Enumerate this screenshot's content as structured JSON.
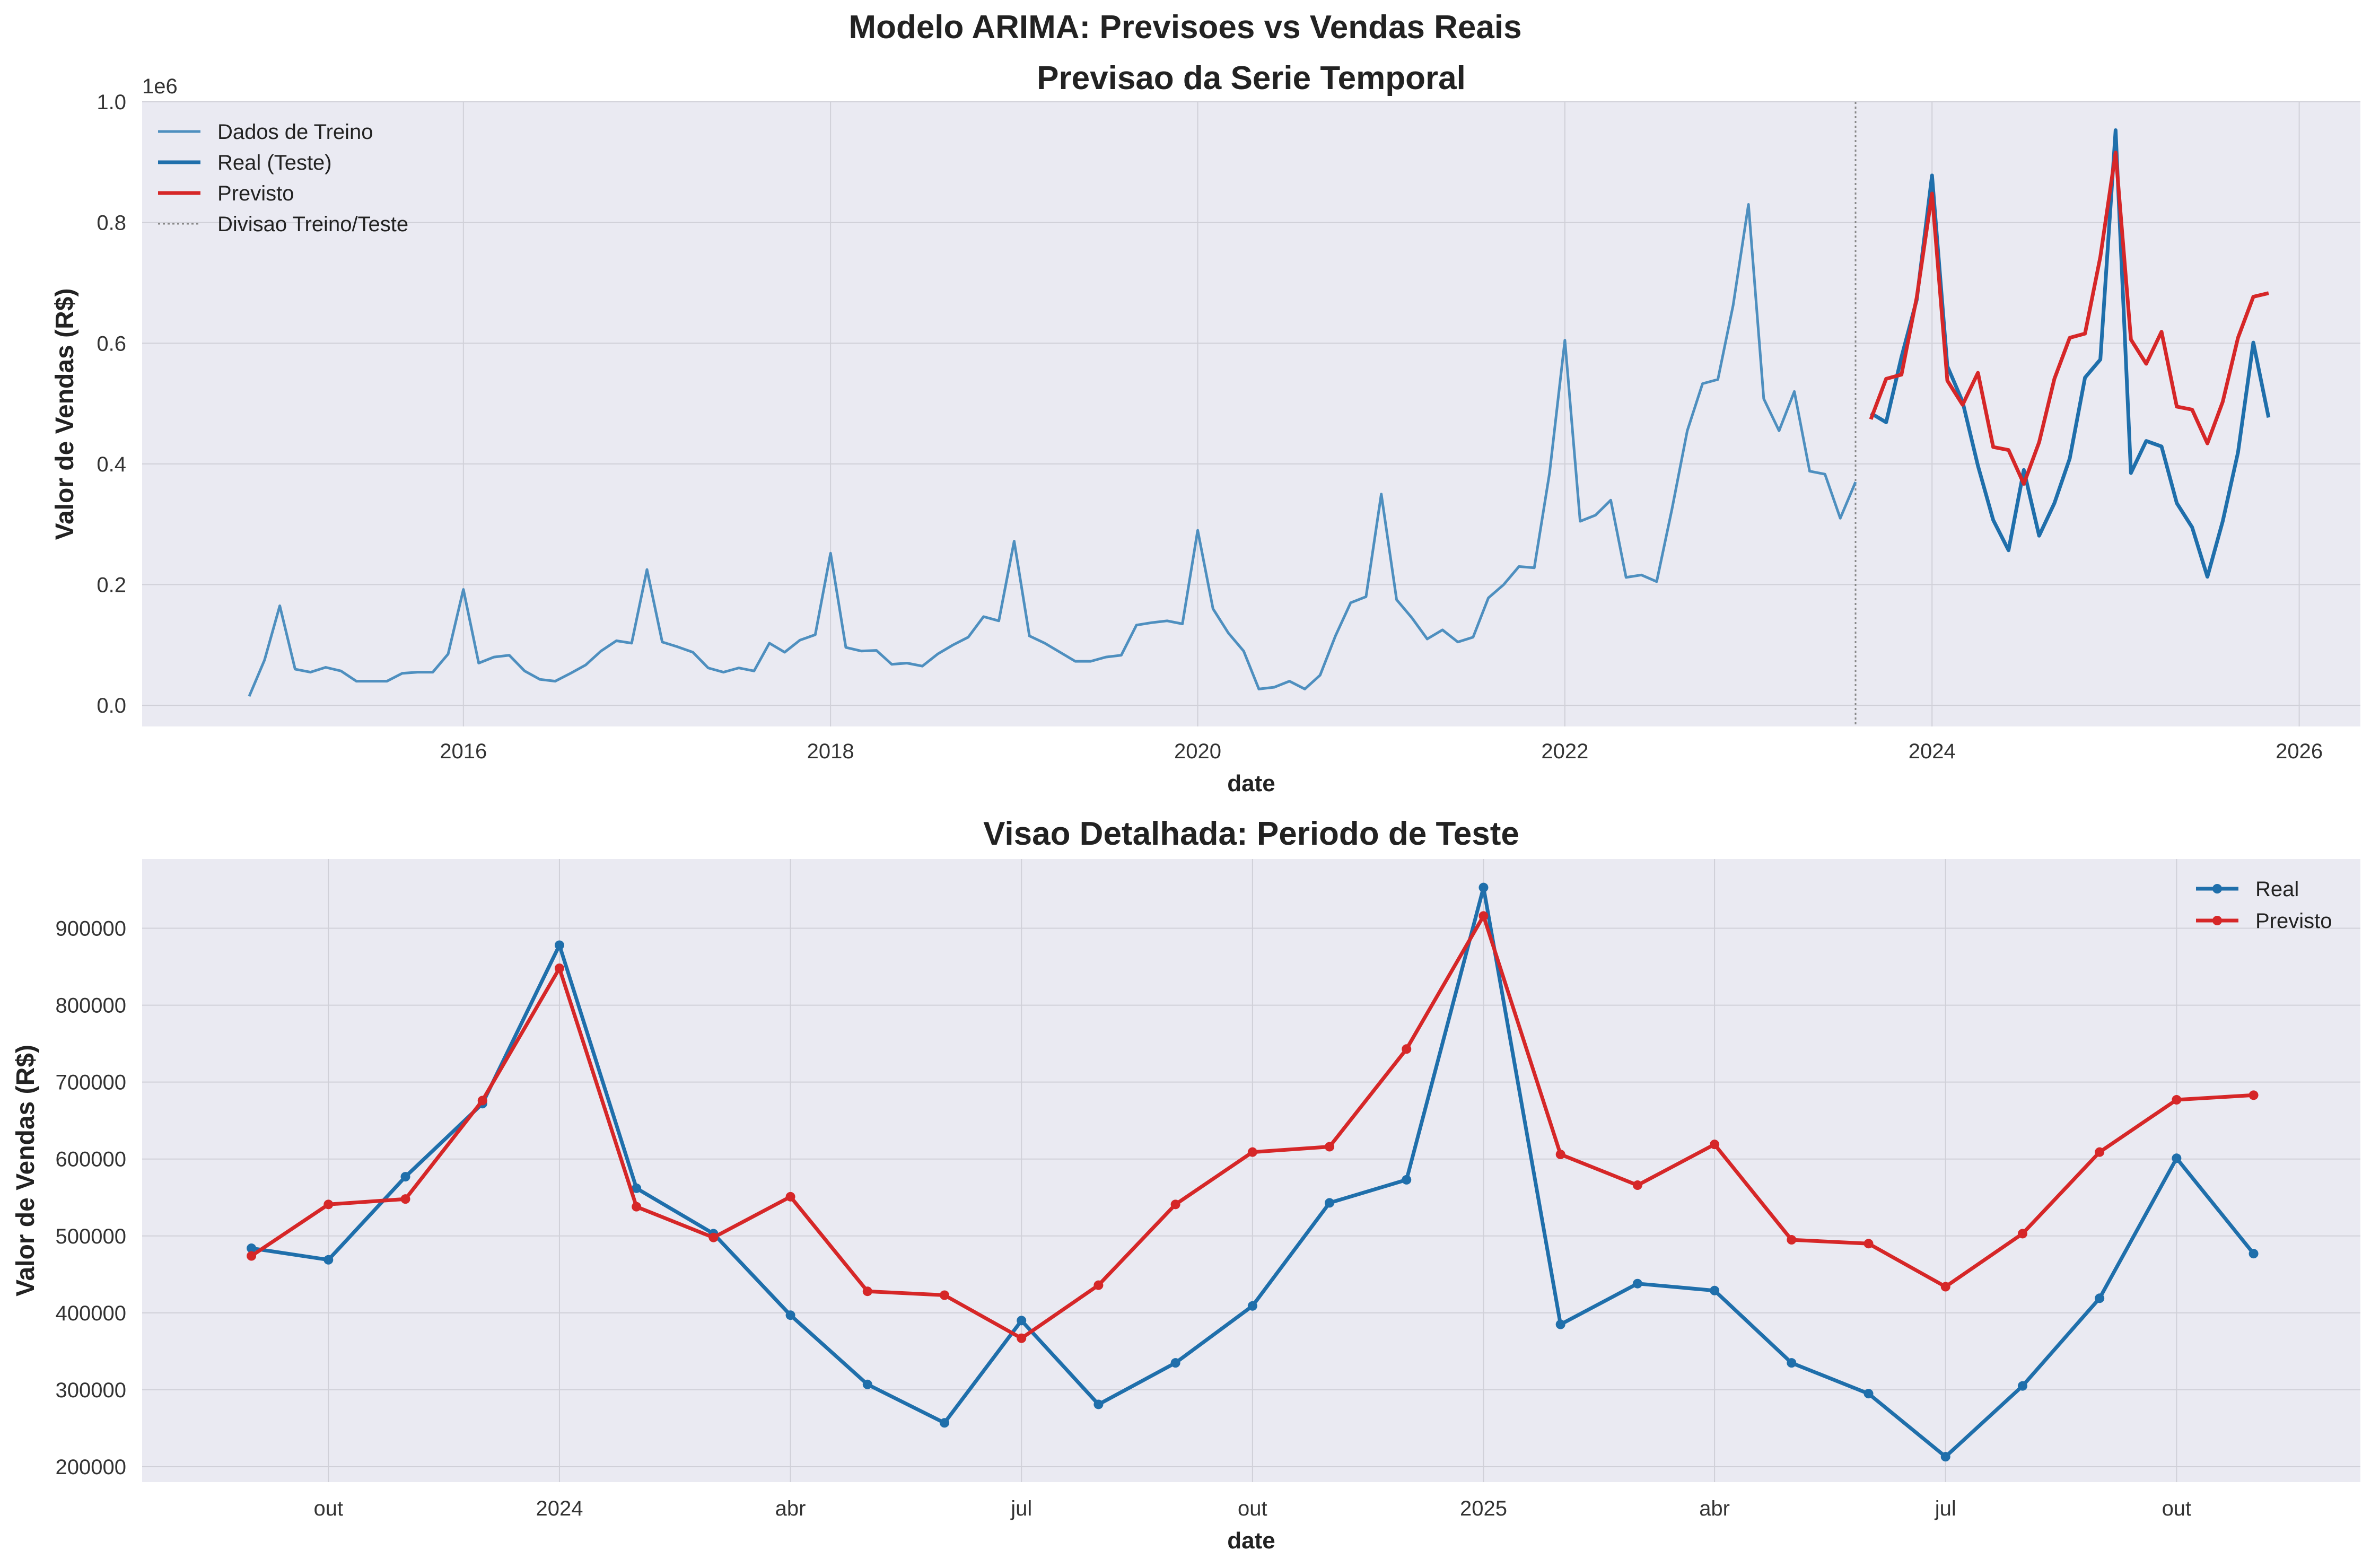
{
  "figure": {
    "suptitle": "Modelo ARIMA: Previsoes vs Vendas Reais"
  },
  "colors": {
    "train": "#4e8fbf",
    "real": "#1f6fab",
    "forecast": "#d62728",
    "plot_bg": "#eaeaf2",
    "grid": "#d0d0d8",
    "split_line": "#888888"
  },
  "chart_data": [
    {
      "type": "line",
      "title": "Previsao da Serie Temporal",
      "xlabel": "date",
      "ylabel": "Valor de Vendas (R$)",
      "y_offset_label": "1e6",
      "x_tick_labels": [
        "2016",
        "2018",
        "2020",
        "2022",
        "2024",
        "2026"
      ],
      "y_tick_labels": [
        "0.0",
        "0.2",
        "0.4",
        "0.6",
        "0.8",
        "1.0"
      ],
      "ylim": [
        -35000,
        1000000
      ],
      "xlim": [
        "2014-04",
        "2026-05"
      ],
      "grid": true,
      "legend_position": "upper-left",
      "legend": [
        "Dados de Treino",
        "Real (Teste)",
        "Previsto",
        "Divisao Treino/Teste"
      ],
      "split_date": "2023-08",
      "series": [
        {
          "name": "Dados de Treino",
          "x": [
            "2014-11",
            "2014-12",
            "2015-01",
            "2015-02",
            "2015-03",
            "2015-04",
            "2015-05",
            "2015-06",
            "2015-07",
            "2015-08",
            "2015-09",
            "2015-10",
            "2015-11",
            "2015-12",
            "2016-01",
            "2016-02",
            "2016-03",
            "2016-04",
            "2016-05",
            "2016-06",
            "2016-07",
            "2016-08",
            "2016-09",
            "2016-10",
            "2016-11",
            "2016-12",
            "2017-01",
            "2017-02",
            "2017-03",
            "2017-04",
            "2017-05",
            "2017-06",
            "2017-07",
            "2017-08",
            "2017-09",
            "2017-10",
            "2017-11",
            "2017-12",
            "2018-01",
            "2018-02",
            "2018-03",
            "2018-04",
            "2018-05",
            "2018-06",
            "2018-07",
            "2018-08",
            "2018-09",
            "2018-10",
            "2018-11",
            "2018-12",
            "2019-01",
            "2019-02",
            "2019-03",
            "2019-04",
            "2019-05",
            "2019-06",
            "2019-07",
            "2019-08",
            "2019-09",
            "2019-10",
            "2019-11",
            "2019-12",
            "2020-01",
            "2020-02",
            "2020-03",
            "2020-04",
            "2020-05",
            "2020-06",
            "2020-07",
            "2020-08",
            "2020-09",
            "2020-10",
            "2020-11",
            "2020-12",
            "2021-01",
            "2021-02",
            "2021-03",
            "2021-04",
            "2021-05",
            "2021-06",
            "2021-07",
            "2021-08",
            "2021-09",
            "2021-10",
            "2021-11",
            "2021-12",
            "2022-01",
            "2022-02",
            "2022-03",
            "2022-04",
            "2022-05",
            "2022-06",
            "2022-07",
            "2022-08",
            "2022-09",
            "2022-10",
            "2022-11",
            "2022-12",
            "2023-01",
            "2023-02",
            "2023-03",
            "2023-04",
            "2023-05",
            "2023-06",
            "2023-07",
            "2023-08"
          ],
          "y": [
            15000,
            75000,
            165000,
            60000,
            55000,
            63000,
            57000,
            40000,
            40000,
            40000,
            53000,
            55000,
            55000,
            85000,
            192000,
            70000,
            80000,
            83000,
            57000,
            43000,
            40000,
            53000,
            67000,
            90000,
            107000,
            103000,
            225000,
            105000,
            97000,
            88000,
            62000,
            55000,
            62000,
            57000,
            103000,
            88000,
            108000,
            117000,
            252000,
            96000,
            90000,
            91000,
            68000,
            70000,
            65000,
            85000,
            100000,
            113000,
            147000,
            140000,
            272000,
            115000,
            103000,
            88000,
            73000,
            73000,
            80000,
            83000,
            133000,
            137000,
            140000,
            135000,
            290000,
            160000,
            120000,
            90000,
            27000,
            30000,
            40000,
            27000,
            50000,
            115000,
            170000,
            180000,
            350000,
            175000,
            145000,
            110000,
            125000,
            105000,
            113000,
            178000,
            200000,
            230000,
            228000,
            385000,
            605000,
            305000,
            315000,
            340000,
            212000,
            216000,
            205000,
            325000,
            455000,
            533000,
            540000,
            663000,
            830000,
            508000,
            455000,
            520000,
            388000,
            383000,
            310000,
            370000
          ]
        },
        {
          "name": "Real (Teste)",
          "x": [
            "2023-09",
            "2023-10",
            "2023-11",
            "2023-12",
            "2024-01",
            "2024-02",
            "2024-03",
            "2024-04",
            "2024-05",
            "2024-06",
            "2024-07",
            "2024-08",
            "2024-09",
            "2024-10",
            "2024-11",
            "2024-12",
            "2025-01",
            "2025-02",
            "2025-03",
            "2025-04",
            "2025-05",
            "2025-06",
            "2025-07",
            "2025-08",
            "2025-09",
            "2025-10",
            "2025-11"
          ],
          "y": [
            484000,
            469000,
            577000,
            672000,
            878000,
            562000,
            503000,
            397000,
            307000,
            257000,
            390000,
            281000,
            335000,
            409000,
            543000,
            573000,
            953000,
            385000,
            438000,
            429000,
            335000,
            295000,
            213000,
            305000,
            419000,
            601000,
            477000
          ]
        },
        {
          "name": "Previsto",
          "x": [
            "2023-09",
            "2023-10",
            "2023-11",
            "2023-12",
            "2024-01",
            "2024-02",
            "2024-03",
            "2024-04",
            "2024-05",
            "2024-06",
            "2024-07",
            "2024-08",
            "2024-09",
            "2024-10",
            "2024-11",
            "2024-12",
            "2025-01",
            "2025-02",
            "2025-03",
            "2025-04",
            "2025-05",
            "2025-06",
            "2025-07",
            "2025-08",
            "2025-09",
            "2025-10",
            "2025-11"
          ],
          "y": [
            474000,
            541000,
            548000,
            676000,
            848000,
            538000,
            498000,
            551000,
            428000,
            423000,
            367000,
            436000,
            541000,
            609000,
            616000,
            743000,
            916000,
            606000,
            566000,
            619000,
            495000,
            490000,
            434000,
            503000,
            609000,
            677000,
            683000
          ]
        }
      ]
    },
    {
      "type": "line",
      "title": "Visao Detalhada: Periodo de Teste",
      "xlabel": "date",
      "ylabel": "Valor de Vendas (R$)",
      "x_tick_labels": [
        "out",
        "2024",
        "abr",
        "jul",
        "out",
        "2025",
        "abr",
        "jul",
        "out"
      ],
      "y_tick_labels": [
        "200000",
        "300000",
        "400000",
        "500000",
        "600000",
        "700000",
        "800000",
        "900000"
      ],
      "ylim": [
        180000,
        990000
      ],
      "xlim": [
        "2023-07-19",
        "2025-12-13"
      ],
      "grid": true,
      "legend_position": "upper-right",
      "legend": [
        "Real",
        "Previsto"
      ],
      "series": [
        {
          "name": "Real",
          "x": [
            "2023-09",
            "2023-10",
            "2023-11",
            "2023-12",
            "2024-01",
            "2024-02",
            "2024-03",
            "2024-04",
            "2024-05",
            "2024-06",
            "2024-07",
            "2024-08",
            "2024-09",
            "2024-10",
            "2024-11",
            "2024-12",
            "2025-01",
            "2025-02",
            "2025-03",
            "2025-04",
            "2025-05",
            "2025-06",
            "2025-07",
            "2025-08",
            "2025-09",
            "2025-10",
            "2025-11"
          ],
          "y": [
            484000,
            469000,
            577000,
            672000,
            878000,
            562000,
            503000,
            397000,
            307000,
            257000,
            390000,
            281000,
            335000,
            409000,
            543000,
            573000,
            953000,
            385000,
            438000,
            429000,
            335000,
            295000,
            213000,
            305000,
            419000,
            601000,
            477000
          ]
        },
        {
          "name": "Previsto",
          "x": [
            "2023-09",
            "2023-10",
            "2023-11",
            "2023-12",
            "2024-01",
            "2024-02",
            "2024-03",
            "2024-04",
            "2024-05",
            "2024-06",
            "2024-07",
            "2024-08",
            "2024-09",
            "2024-10",
            "2024-11",
            "2024-12",
            "2025-01",
            "2025-02",
            "2025-03",
            "2025-04",
            "2025-05",
            "2025-06",
            "2025-07",
            "2025-08",
            "2025-09",
            "2025-10",
            "2025-11"
          ],
          "y": [
            474000,
            541000,
            548000,
            676000,
            848000,
            538000,
            498000,
            551000,
            428000,
            423000,
            367000,
            436000,
            541000,
            609000,
            616000,
            743000,
            916000,
            606000,
            566000,
            619000,
            495000,
            490000,
            434000,
            503000,
            609000,
            677000,
            683000
          ]
        }
      ]
    }
  ]
}
